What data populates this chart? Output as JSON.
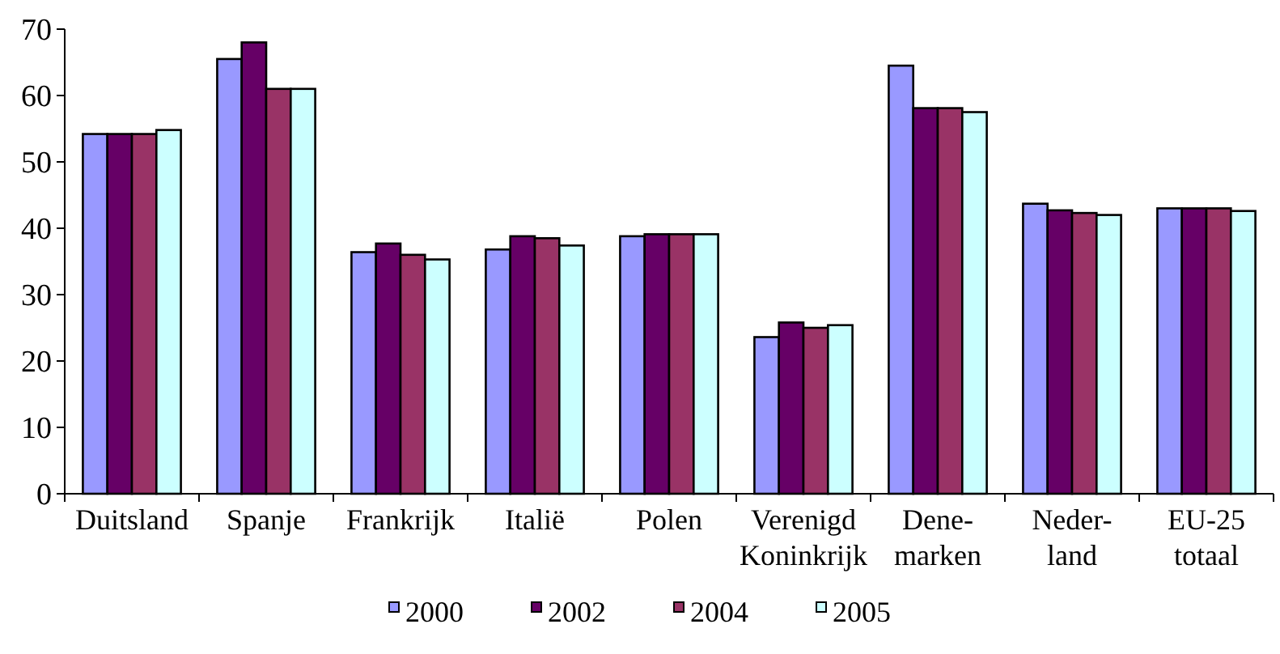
{
  "chart_data": {
    "type": "bar",
    "categories": [
      "Duitsland",
      "Spanje",
      "Frankrijk",
      "Italië",
      "Polen",
      "Verenigd\nKoninkrijk",
      "Dene-\nmarken",
      "Neder-\nland",
      "EU-25\ntotaal"
    ],
    "series": [
      {
        "name": "2000",
        "color": "#9999ff",
        "values": [
          54.2,
          65.5,
          36.4,
          36.8,
          38.8,
          23.6,
          64.5,
          43.7,
          43.0
        ]
      },
      {
        "name": "2002",
        "color": "#660066",
        "values": [
          54.2,
          68.0,
          37.7,
          38.8,
          39.1,
          25.8,
          58.1,
          42.7,
          43.0
        ]
      },
      {
        "name": "2004",
        "color": "#993366",
        "values": [
          54.2,
          61.0,
          36.0,
          38.5,
          39.1,
          25.0,
          58.1,
          42.3,
          43.0
        ]
      },
      {
        "name": "2005",
        "color": "#ccffff",
        "values": [
          54.8,
          61.0,
          35.3,
          37.4,
          39.1,
          25.4,
          57.5,
          42.0,
          42.6
        ]
      }
    ],
    "ylim": [
      0,
      70
    ],
    "yticks": [
      0,
      10,
      20,
      30,
      40,
      50,
      60,
      70
    ],
    "grid": false,
    "legend": "bottom"
  }
}
